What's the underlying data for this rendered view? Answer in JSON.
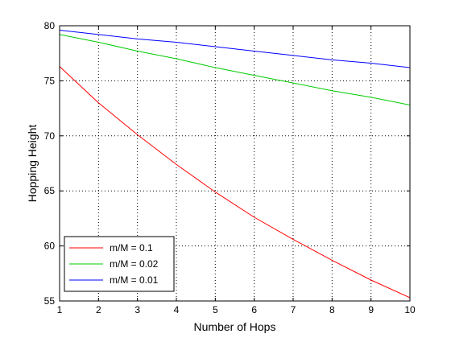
{
  "chart_data": {
    "type": "line",
    "xlabel": "Number of Hops",
    "ylabel": "Hopping Height",
    "xlim": [
      1,
      10
    ],
    "ylim": [
      55,
      80
    ],
    "xticks": [
      "1",
      "2",
      "3",
      "4",
      "5",
      "6",
      "7",
      "8",
      "9",
      "10"
    ],
    "yticks": [
      "55",
      "60",
      "65",
      "70",
      "75",
      "80"
    ],
    "grid": true,
    "legend_position": "bottom-left",
    "x": [
      1,
      2,
      3,
      4,
      5,
      6,
      7,
      8,
      9,
      10
    ],
    "series": [
      {
        "name": "m/M = 0.1",
        "color": "#ff0000",
        "values": [
          76.3,
          73.0,
          70.1,
          67.4,
          64.9,
          62.6,
          60.6,
          58.7,
          56.9,
          55.3
        ]
      },
      {
        "name": "m/M = 0.02",
        "color": "#00cc00",
        "values": [
          79.2,
          78.5,
          77.7,
          77.0,
          76.2,
          75.5,
          74.8,
          74.1,
          73.5,
          72.8
        ]
      },
      {
        "name": "m/M = 0.01",
        "color": "#0000ff",
        "values": [
          79.6,
          79.2,
          78.8,
          78.5,
          78.1,
          77.7,
          77.3,
          76.9,
          76.6,
          76.2
        ]
      }
    ]
  }
}
